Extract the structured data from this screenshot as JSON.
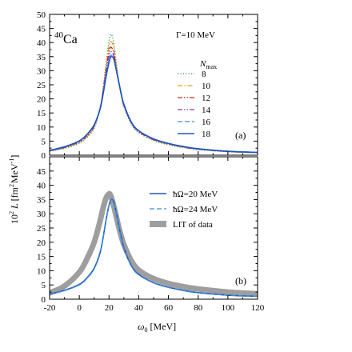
{
  "chart_data": [
    {
      "type": "line",
      "panel_label": "(a)",
      "nucleus": {
        "mass": "40",
        "symbol": "Ca"
      },
      "gamma_label": "Γ=10 MeV",
      "legend_title": {
        "main": "N",
        "sub": "max"
      },
      "legend_placement": "top-right",
      "xlim": [
        -20,
        120
      ],
      "ylim": [
        0,
        50
      ],
      "yticks": [
        0,
        5,
        10,
        15,
        20,
        25,
        30,
        35,
        40,
        45,
        50
      ],
      "x": [
        -20,
        -10,
        0,
        5,
        10,
        14,
        16,
        18,
        20,
        21,
        22,
        23,
        24,
        26,
        28,
        30,
        35,
        40,
        50,
        60,
        70,
        80,
        100,
        120
      ],
      "series": [
        {
          "name": "8",
          "color": "#2e8b57",
          "style": "dotted",
          "values": [
            1.4,
            2.4,
            4.2,
            6.2,
            9.6,
            16.5,
            23.5,
            32.5,
            40.5,
            42.8,
            42.5,
            40.5,
            36.5,
            28.5,
            22.0,
            17.2,
            11.0,
            8.0,
            5.2,
            3.7,
            2.7,
            2.0,
            1.2,
            0.9
          ]
        },
        {
          "name": "10",
          "color": "#e0a020",
          "style": "dashdot",
          "values": [
            1.5,
            2.6,
            4.5,
            6.5,
            10.0,
            16.8,
            23.5,
            31.5,
            38.5,
            40.3,
            40.0,
            38.5,
            35.0,
            28.0,
            22.0,
            17.5,
            11.3,
            8.3,
            5.4,
            3.9,
            2.8,
            2.1,
            1.3,
            0.9
          ]
        },
        {
          "name": "12",
          "color": "#cc2020",
          "style": "dashdotdot",
          "values": [
            1.6,
            2.7,
            4.7,
            6.8,
            10.3,
            16.8,
            23.0,
            30.5,
            36.8,
            38.3,
            38.0,
            36.8,
            34.0,
            27.5,
            22.0,
            17.6,
            11.5,
            8.4,
            5.5,
            4.0,
            2.9,
            2.1,
            1.3,
            0.9
          ]
        },
        {
          "name": "14",
          "color": "#9932cc",
          "style": "dashdotdot",
          "values": [
            1.6,
            2.8,
            4.9,
            7.0,
            10.5,
            16.8,
            22.6,
            29.5,
            35.2,
            36.7,
            36.5,
            35.5,
            33.0,
            27.3,
            22.0,
            17.7,
            11.6,
            8.5,
            5.6,
            4.1,
            3.0,
            2.2,
            1.4,
            1.0
          ]
        },
        {
          "name": "16",
          "color": "#3a8fd8",
          "style": "dashed",
          "values": [
            1.7,
            2.9,
            5.0,
            7.2,
            10.7,
            16.6,
            22.0,
            28.5,
            33.8,
            35.4,
            35.4,
            34.6,
            32.5,
            27.2,
            22.2,
            17.9,
            11.7,
            8.6,
            5.7,
            4.1,
            3.0,
            2.2,
            1.4,
            1.0
          ]
        },
        {
          "name": "18",
          "color": "#1a56c8",
          "style": "solid",
          "values": [
            1.7,
            3.0,
            5.1,
            7.3,
            10.8,
            16.4,
            21.6,
            27.8,
            33.0,
            34.7,
            35.0,
            34.4,
            32.5,
            27.4,
            22.4,
            18.1,
            11.8,
            8.7,
            5.8,
            4.2,
            3.1,
            2.3,
            1.4,
            1.0
          ]
        }
      ]
    },
    {
      "type": "line",
      "panel_label": "(b)",
      "legend_placement": "top-right",
      "xlabel": {
        "symbol": "ω",
        "sub": "0",
        "unit": " [MeV]"
      },
      "xlim": [
        -20,
        120
      ],
      "xticks": [
        -20,
        0,
        20,
        40,
        60,
        80,
        100,
        120
      ],
      "ylim": [
        0,
        50
      ],
      "yticks": [
        0,
        5,
        10,
        15,
        20,
        25,
        30,
        35,
        40,
        45
      ],
      "x": [
        -20,
        -10,
        0,
        5,
        10,
        14,
        16,
        18,
        20,
        21,
        22,
        23,
        24,
        26,
        28,
        30,
        35,
        40,
        50,
        60,
        70,
        80,
        100,
        120
      ],
      "series": [
        {
          "name": "ħΩ=20 MeV",
          "color": "#1a56c8",
          "style": "solid",
          "values": [
            1.8,
            3.1,
            5.2,
            7.4,
            10.9,
            16.4,
            21.6,
            27.8,
            33.0,
            34.7,
            35.0,
            34.4,
            32.5,
            27.4,
            22.4,
            18.1,
            11.8,
            8.7,
            5.8,
            4.2,
            3.1,
            2.3,
            1.4,
            1.0
          ]
        },
        {
          "name": "ħΩ=24 MeV",
          "color": "#3a8fd8",
          "style": "dashed",
          "values": [
            1.7,
            3.0,
            5.0,
            7.2,
            10.6,
            16.0,
            21.2,
            27.5,
            32.8,
            34.6,
            34.8,
            34.2,
            32.2,
            27.0,
            22.0,
            17.8,
            11.6,
            8.5,
            5.7,
            4.1,
            3.0,
            2.2,
            1.4,
            1.0
          ]
        },
        {
          "name": "LIT of data",
          "color": "#9e9e9e",
          "style": "band",
          "values": [
            2.2,
            4.6,
            9.5,
            14.0,
            20.0,
            27.5,
            32.0,
            35.5,
            37.0,
            36.5,
            35.0,
            33.0,
            31.0,
            26.5,
            22.5,
            19.2,
            13.5,
            10.2,
            7.2,
            5.5,
            4.4,
            3.6,
            2.5,
            1.9
          ]
        }
      ]
    }
  ],
  "shared_ylabel": {
    "factor": "10",
    "factor_exp": "2",
    "symbol": "L",
    "unit_open": "[fm",
    "fm_exp": "2",
    "unit_mid": "MeV",
    "mev_exp": "-1",
    "unit_close": "]"
  }
}
